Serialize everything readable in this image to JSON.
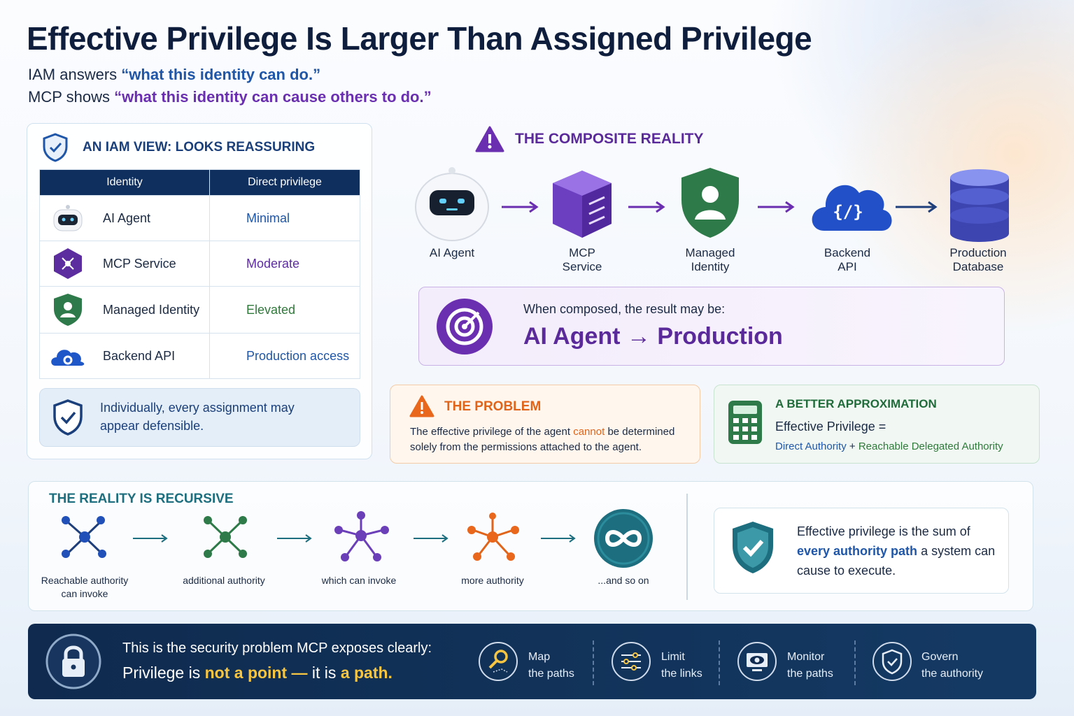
{
  "header": {
    "title": "Effective Privilege Is Larger Than Assigned Privilege",
    "lines": [
      {
        "lead": "IAM answers",
        "quote": "“what this identity can do.”"
      },
      {
        "lead": "MCP shows",
        "quote": "“what this identity can cause others to do.”"
      }
    ]
  },
  "iam_view": {
    "title": "AN IAM VIEW: LOOKS REASSURING",
    "columns": [
      "Identity",
      "Direct privilege"
    ],
    "rows": [
      [
        "AI Agent",
        "Minimal"
      ],
      [
        "MCP Service",
        "Moderate"
      ],
      [
        "Managed Identity",
        "Elevated"
      ],
      [
        "Backend API",
        "Production access"
      ]
    ],
    "note": "Individually, every assignment may appear defensible."
  },
  "composite": {
    "title": "THE COMPOSITE REALITY",
    "nodes": [
      "AI Agent",
      "MCP Service",
      "Managed Identity",
      "Backend API",
      "Production Database"
    ],
    "result_intro": "When composed, the result may be:",
    "result": "AI Agent → Production"
  },
  "problem": {
    "title": "THE PROBLEM",
    "text_before": "The effective privilege of the agent",
    "emphasis": "cannot",
    "text_after": "be determined solely from the permissions attached to the agent."
  },
  "approximation": {
    "title": "A BETTER APPROXIMATION",
    "formula_lead": "Effective Privilege =",
    "term1": "Direct Authority",
    "plus": "+",
    "term2": "Reachable Delegated Authority"
  },
  "recursive": {
    "title": "THE REALITY IS RECURSIVE",
    "steps": [
      "Reachable authority can invoke",
      "additional authority",
      "which can invoke",
      "more authority",
      "...and so on"
    ],
    "summary_before": "Effective privilege is the sum of",
    "summary_emphasis": "every authority path",
    "summary_after": "a system can cause to execute."
  },
  "footer": {
    "line1": "This is the security problem MCP exposes clearly:",
    "line2": [
      "Privilege is",
      "not a point —",
      "it is",
      "a path."
    ],
    "actions": [
      {
        "verb": "Map",
        "object": "the paths"
      },
      {
        "verb": "Limit",
        "object": "the links"
      },
      {
        "verb": "Monitor",
        "object": "the paths"
      },
      {
        "verb": "Govern",
        "object": "the authority"
      }
    ]
  }
}
